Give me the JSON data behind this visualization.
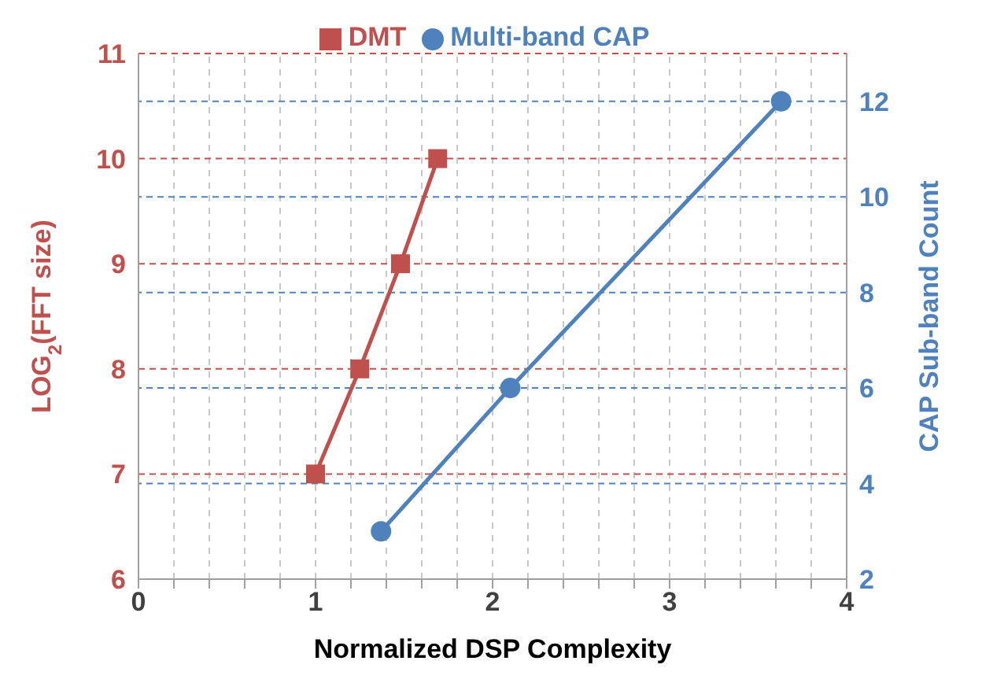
{
  "chart_data": {
    "type": "line",
    "xlabel": "Normalized DSP Complexity",
    "ylabel": "LOG$_{2}$(FFT size)",
    "y2label": "CAP Sub-band Count",
    "series": [
      {
        "name": "DMT",
        "color": "#c0504d",
        "marker": "square",
        "x": [
          1.0,
          1.25,
          1.48,
          1.69
        ],
        "values": [
          7,
          8,
          9,
          10
        ]
      },
      {
        "name": "Multi-band CAP",
        "color": "#4f81bd",
        "marker": "circle",
        "axis": "y2",
        "x": [
          1.37,
          2.1,
          3.63
        ],
        "values": [
          3,
          6,
          12
        ]
      }
    ],
    "xlim": [
      0,
      4
    ],
    "xticks": [
      0,
      {
        "value": 0.2,
        "label": null
      },
      {
        "value": 0.4,
        "label": null
      },
      {
        "value": 0.6,
        "label": null
      },
      {
        "value": 0.8,
        "label": null
      },
      1,
      {
        "value": 1.2,
        "label": null
      },
      {
        "value": 1.4,
        "label": null
      },
      {
        "value": 1.6,
        "label": null
      },
      {
        "value": 1.8,
        "label": null
      },
      2,
      {
        "value": 2.2,
        "label": null
      },
      {
        "value": 2.4,
        "label": null
      },
      {
        "value": 2.6,
        "label": null
      },
      {
        "value": 2.8,
        "label": null
      },
      3,
      {
        "value": 3.2,
        "label": null
      },
      {
        "value": 3.4,
        "label": null
      },
      {
        "value": 3.6,
        "label": null
      },
      {
        "value": 3.8,
        "label": null
      },
      4
    ],
    "ylim": [
      6,
      11
    ],
    "yticks": [
      6,
      7,
      8,
      9,
      10,
      11
    ],
    "y2lim": [
      2,
      13
    ],
    "y2ticks": [
      2,
      4,
      6,
      8,
      10,
      12
    ],
    "grid": true,
    "legend": "top",
    "line_style": "solid"
  }
}
